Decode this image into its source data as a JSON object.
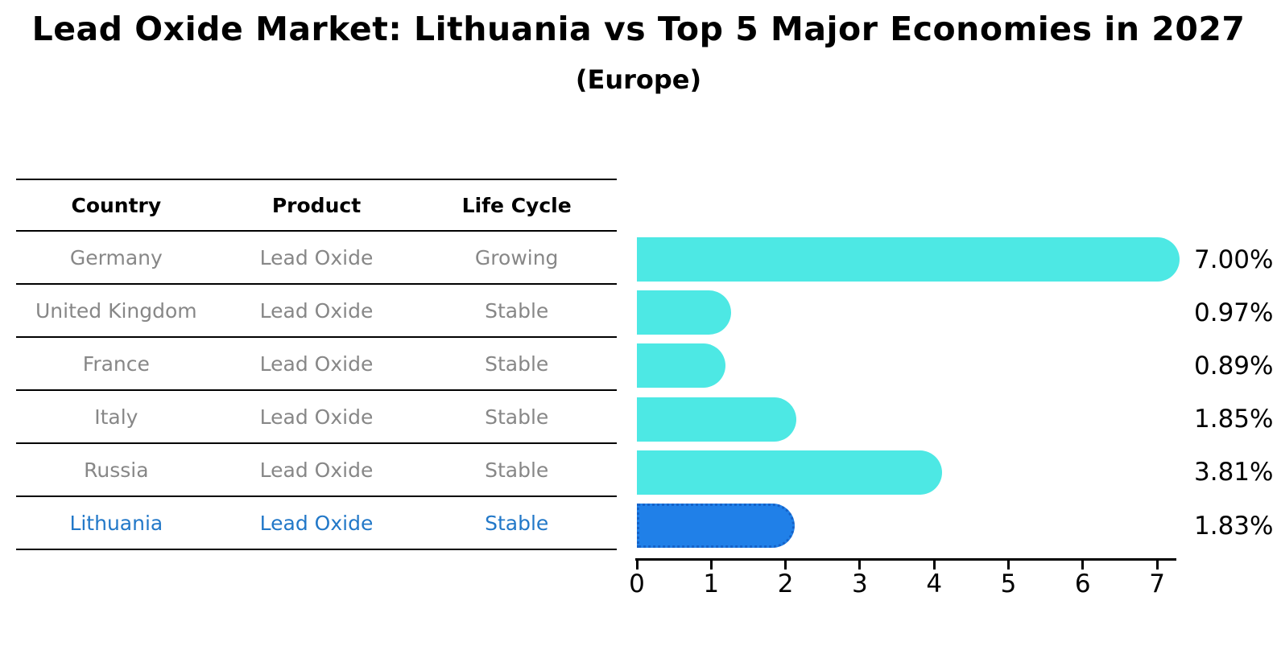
{
  "title": "Lead Oxide Market: Lithuania vs Top 5 Major Economies in 2027",
  "subtitle": "(Europe)",
  "table": {
    "headers": [
      "Country",
      "Product",
      "Life Cycle"
    ],
    "rows": [
      {
        "country": "Germany",
        "product": "Lead Oxide",
        "life_cycle": "Growing",
        "highlight": false
      },
      {
        "country": "United Kingdom",
        "product": "Lead Oxide",
        "life_cycle": "Stable",
        "highlight": false
      },
      {
        "country": "France",
        "product": "Lead Oxide",
        "life_cycle": "Stable",
        "highlight": false
      },
      {
        "country": "Italy",
        "product": "Lead Oxide",
        "life_cycle": "Stable",
        "highlight": false
      },
      {
        "country": "Russia",
        "product": "Lead Oxide",
        "life_cycle": "Stable",
        "highlight": false
      },
      {
        "country": "Lithuania",
        "product": "Lead Oxide",
        "life_cycle": "Stable",
        "highlight": true
      }
    ]
  },
  "chart_data": {
    "type": "bar",
    "orientation": "horizontal",
    "title": "Lead Oxide Market: Lithuania vs Top 5 Major Economies in 2027",
    "subtitle": "(Europe)",
    "categories": [
      "Germany",
      "United Kingdom",
      "France",
      "Italy",
      "Russia",
      "Lithuania"
    ],
    "values": [
      7.0,
      0.97,
      0.89,
      1.85,
      3.81,
      1.83
    ],
    "value_labels": [
      "7.00%",
      "0.97%",
      "0.89%",
      "1.85%",
      "3.81%",
      "1.83%"
    ],
    "xlabel": "",
    "ylabel": "",
    "xlim": [
      0,
      7.35
    ],
    "x_ticks": [
      0,
      1,
      2,
      3,
      4,
      5,
      6,
      7
    ],
    "grid": false,
    "legend_position": "none",
    "bar_color": "#4DE8E4",
    "highlight_index": 5,
    "highlight_color": "#2080E8",
    "highlight_border_color": "#1562C8"
  },
  "colors": {
    "text_primary": "#000000",
    "text_muted": "#878787",
    "text_highlight": "#2278C8",
    "bar": "#4DE8E4",
    "bar_highlight": "#2080E8",
    "bar_highlight_border": "#1562C8"
  }
}
